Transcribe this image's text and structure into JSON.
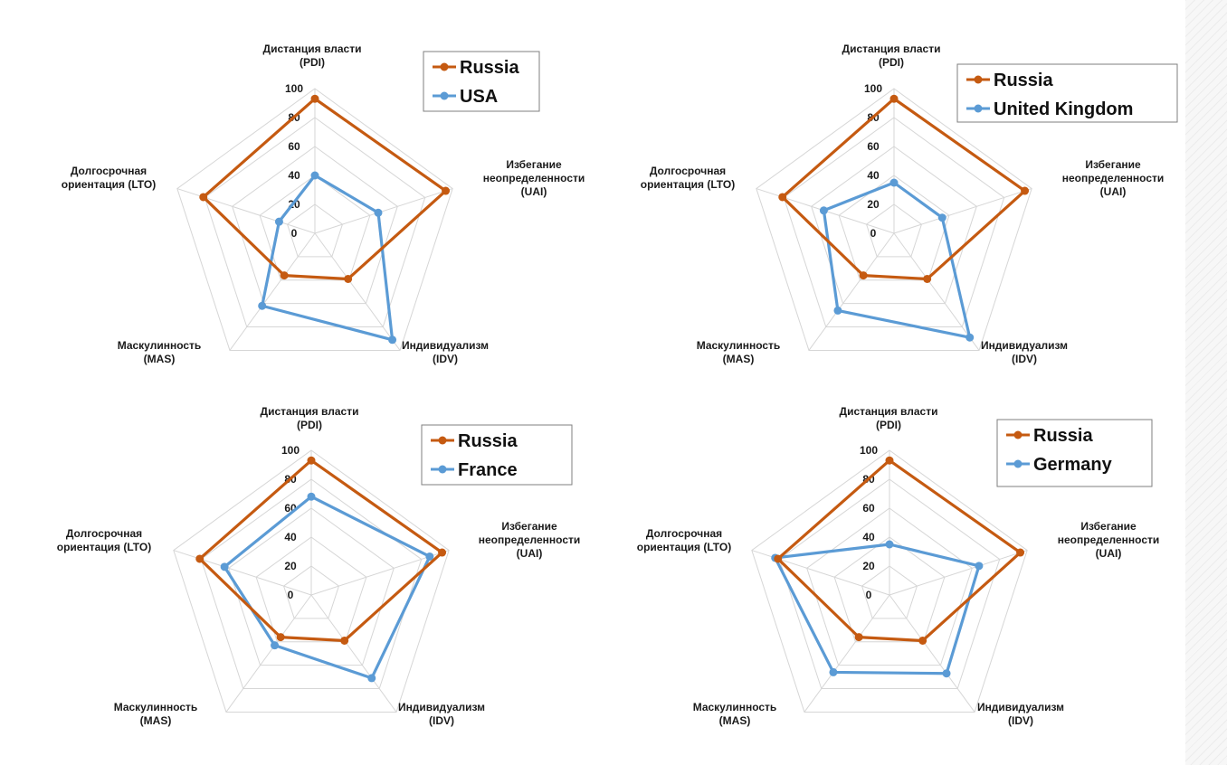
{
  "colors": {
    "russia": "#c55a11",
    "other": "#5b9bd5",
    "grid": "#d6d6d6",
    "legend_border": "#7f7f7f"
  },
  "chart_data": [
    {
      "type": "radar",
      "axes": [
        "Дистанция власти\n(PDI)",
        "Избегание\nнеопределенности\n(UAI)",
        "Индивидуализм\n(IDV)",
        "Маскулинность\n(MAS)",
        "Долгосрочная\nориентация (LTO)"
      ],
      "ticks": [
        "0",
        "20",
        "40",
        "60",
        "80",
        "100"
      ],
      "rlim": [
        0,
        100
      ],
      "series": [
        {
          "name": "Russia",
          "values": [
            93,
            95,
            39,
            36,
            81
          ]
        },
        {
          "name": "USA",
          "values": [
            40,
            46,
            91,
            62,
            26
          ]
        }
      ],
      "legend": "top-right"
    },
    {
      "type": "radar",
      "axes": [
        "Дистанция власти\n(PDI)",
        "Избегание\nнеопределенности\n(UAI)",
        "Индивидуализм\n(IDV)",
        "Маскулинность\n(MAS)",
        "Долгосрочная\nориентация (LTO)"
      ],
      "ticks": [
        "0",
        "20",
        "40",
        "60",
        "80",
        "100"
      ],
      "rlim": [
        0,
        100
      ],
      "series": [
        {
          "name": "Russia",
          "values": [
            93,
            95,
            39,
            36,
            81
          ]
        },
        {
          "name": "United Kingdom",
          "values": [
            35,
            35,
            89,
            66,
            51
          ]
        }
      ],
      "legend": "top-right"
    },
    {
      "type": "radar",
      "axes": [
        "Дистанция власти\n(PDI)",
        "Избегание\nнеопределенности\n(UAI)",
        "Индивидуализм\n(IDV)",
        "Маскулинность\n(MAS)",
        "Долгосрочная\nориентация (LTO)"
      ],
      "ticks": [
        "0",
        "20",
        "40",
        "60",
        "80",
        "100"
      ],
      "rlim": [
        0,
        100
      ],
      "series": [
        {
          "name": "Russia",
          "values": [
            93,
            95,
            39,
            36,
            81
          ]
        },
        {
          "name": "France",
          "values": [
            68,
            86,
            71,
            43,
            63
          ]
        }
      ],
      "legend": "top-right"
    },
    {
      "type": "radar",
      "axes": [
        "Дистанция власти\n(PDI)",
        "Избегание\nнеопределенности\n(UAI)",
        "Индивидуализм\n(IDV)",
        "Маскулинность\n(MAS)",
        "Долгосрочная\nориентация (LTO)"
      ],
      "ticks": [
        "0",
        "20",
        "40",
        "60",
        "80",
        "100"
      ],
      "rlim": [
        0,
        100
      ],
      "series": [
        {
          "name": "Russia",
          "values": [
            93,
            95,
            39,
            36,
            81
          ]
        },
        {
          "name": "Germany",
          "values": [
            35,
            65,
            67,
            66,
            83
          ]
        }
      ],
      "legend": "top-right"
    }
  ]
}
